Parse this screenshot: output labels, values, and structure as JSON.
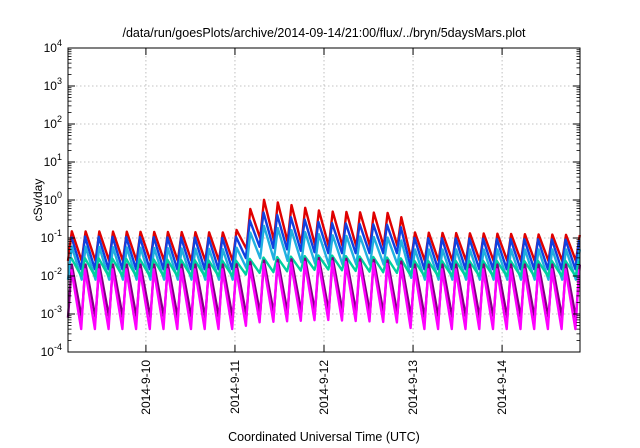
{
  "chart_data": {
    "type": "line",
    "title": "/data/run/goesPlots/archive/2014-09-14/21:00/flux/../bryn/5daysMars.plot",
    "xlabel": "Coordinated Universal Time (UTC)",
    "ylabel": "cSv/day",
    "yscale": "log",
    "ylim": [
      0.0001,
      10000
    ],
    "xlim": [
      "2014-09-09 03:00",
      "2014-09-14 21:00"
    ],
    "grid": true,
    "legend": "none",
    "x_ticks": [
      "2014-9-10",
      "2014-9-11",
      "2014-9-12",
      "2014-9-13",
      "2014-9-14"
    ],
    "y_ticks": [
      {
        "base": "10",
        "exp": "-4"
      },
      {
        "base": "10",
        "exp": "-3"
      },
      {
        "base": "10",
        "exp": "-2"
      },
      {
        "base": "10",
        "exp": "-1"
      },
      {
        "base": "10",
        "exp": "0"
      },
      {
        "base": "10",
        "exp": "1"
      },
      {
        "base": "10",
        "exp": "2"
      },
      {
        "base": "10",
        "exp": "3"
      },
      {
        "base": "10",
        "exp": "4"
      }
    ],
    "oscillation_period_hours": 3.7,
    "envelope_x": [
      "2014-09-09 03:00",
      "2014-09-11 00:00",
      "2014-09-11 06:00",
      "2014-09-12 00:00",
      "2014-09-12 20:00",
      "2014-09-13 00:00",
      "2014-09-14 21:00"
    ],
    "series": [
      {
        "color": "#e00000",
        "peak": [
          0.15,
          0.14,
          1.1,
          0.5,
          0.45,
          0.14,
          0.12
        ],
        "trough": [
          0.025,
          0.025,
          0.1,
          0.06,
          0.06,
          0.025,
          0.025
        ]
      },
      {
        "color": "#1040e0",
        "peak": [
          0.11,
          0.1,
          0.5,
          0.25,
          0.22,
          0.1,
          0.09
        ],
        "trough": [
          0.015,
          0.015,
          0.06,
          0.04,
          0.04,
          0.015,
          0.015
        ]
      },
      {
        "color": "#20b0e0",
        "peak": [
          0.06,
          0.05,
          0.22,
          0.12,
          0.1,
          0.05,
          0.05
        ],
        "trough": [
          0.008,
          0.008,
          0.03,
          0.02,
          0.02,
          0.008,
          0.008
        ]
      },
      {
        "color": "#00d0a0",
        "peak": [
          0.03,
          0.025,
          0.03,
          0.035,
          0.03,
          0.025,
          0.025
        ],
        "trough": [
          0.01,
          0.01,
          0.012,
          0.015,
          0.012,
          0.01,
          0.01
        ]
      },
      {
        "color": "#800080",
        "peak": [
          0.02,
          0.02,
          0.025,
          0.03,
          0.025,
          0.02,
          0.02
        ],
        "trough": [
          0.0008,
          0.0008,
          0.001,
          0.0012,
          0.001,
          0.0008,
          0.0008
        ]
      },
      {
        "color": "#ff00ff",
        "peak": [
          0.015,
          0.015,
          0.02,
          0.025,
          0.02,
          0.015,
          0.015
        ],
        "trough": [
          0.0004,
          0.0004,
          0.0006,
          0.0007,
          0.0006,
          0.0004,
          0.0004
        ]
      }
    ]
  }
}
